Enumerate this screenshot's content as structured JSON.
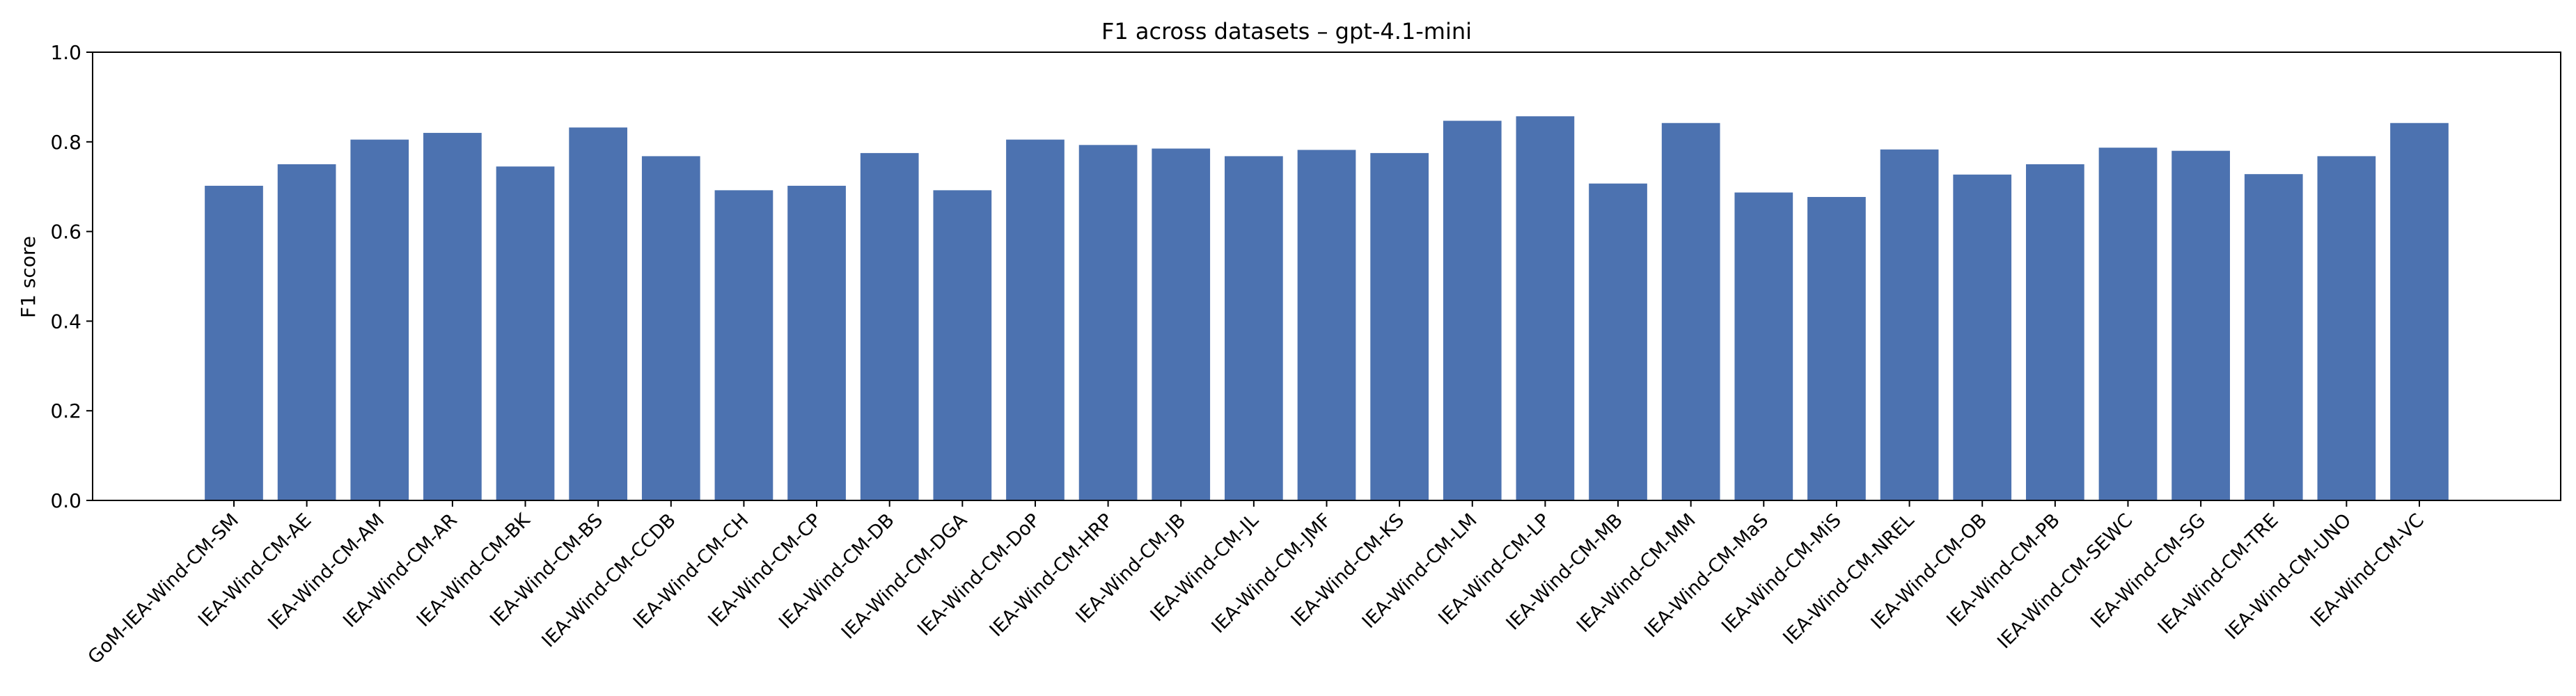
{
  "chart_data": {
    "type": "bar",
    "title": "F1 across datasets – gpt-4.1-mini",
    "xlabel": "",
    "ylabel": "F1 score",
    "ylim": [
      0,
      1.0
    ],
    "yticks": [
      "0.0",
      "0.2",
      "0.4",
      "0.6",
      "0.8",
      "1.0"
    ],
    "grid": false,
    "bar_color": "#4c72b0",
    "categories": [
      "GoM-IEA-Wind-CM-SM",
      "IEA-Wind-CM-AE",
      "IEA-Wind-CM-AM",
      "IEA-Wind-CM-AR",
      "IEA-Wind-CM-BK",
      "IEA-Wind-CM-BS",
      "IEA-Wind-CM-CCDB",
      "IEA-Wind-CM-CH",
      "IEA-Wind-CM-CP",
      "IEA-Wind-CM-DB",
      "IEA-Wind-CM-DGA",
      "IEA-Wind-CM-DoP",
      "IEA-Wind-CM-HRP",
      "IEA-Wind-CM-JB",
      "IEA-Wind-CM-JL",
      "IEA-Wind-CM-JMF",
      "IEA-Wind-CM-KS",
      "IEA-Wind-CM-LM",
      "IEA-Wind-CM-LP",
      "IEA-Wind-CM-MB",
      "IEA-Wind-CM-MM",
      "IEA-Wind-CM-MaS",
      "IEA-Wind-CM-MiS",
      "IEA-Wind-CM-NREL",
      "IEA-Wind-CM-OB",
      "IEA-Wind-CM-PB",
      "IEA-Wind-CM-SEWC",
      "IEA-Wind-CM-SG",
      "IEA-Wind-CM-TRE",
      "IEA-Wind-CM-UNO",
      "IEA-Wind-CM-VC"
    ],
    "values": [
      0.702,
      0.75,
      0.805,
      0.82,
      0.745,
      0.832,
      0.768,
      0.692,
      0.702,
      0.775,
      0.692,
      0.805,
      0.793,
      0.785,
      0.768,
      0.782,
      0.775,
      0.847,
      0.857,
      0.707,
      0.842,
      0.687,
      0.677,
      0.783,
      0.727,
      0.75,
      0.787,
      0.78,
      0.728,
      0.768,
      0.842
    ]
  }
}
